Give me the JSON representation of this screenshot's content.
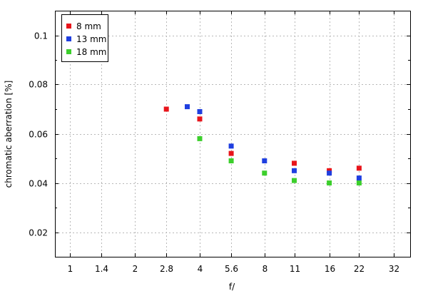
{
  "chart_data": {
    "type": "scatter",
    "xlabel": "f/",
    "ylabel": "chromatic aberration [%]",
    "x_scale": "log",
    "x_ticks": [
      1,
      1.4,
      2,
      2.8,
      4,
      5.6,
      8,
      11,
      16,
      22,
      32
    ],
    "x_tick_labels": [
      "1",
      "1.4",
      "2",
      "2.8",
      "4",
      "5.6",
      "8",
      "11",
      "16",
      "22",
      "32"
    ],
    "xlim": [
      0.85,
      38
    ],
    "y_ticks": [
      0.02,
      0.04,
      0.06,
      0.08,
      0.1
    ],
    "y_tick_labels": [
      "0.02",
      "0.04",
      "0.06",
      "0.08",
      "0.1"
    ],
    "ylim": [
      0.01,
      0.11
    ],
    "grid": true,
    "legend_position": "top-left",
    "series": [
      {
        "name": "8 mm",
        "color": "#e8141b",
        "points": [
          [
            2.8,
            0.07
          ],
          [
            4.0,
            0.066
          ],
          [
            5.6,
            0.052
          ],
          [
            11,
            0.048
          ],
          [
            16,
            0.045
          ],
          [
            22,
            0.046
          ]
        ]
      },
      {
        "name": "13 mm",
        "color": "#1f3fe0",
        "points": [
          [
            3.5,
            0.071
          ],
          [
            4.0,
            0.069
          ],
          [
            5.6,
            0.055
          ],
          [
            8,
            0.049
          ],
          [
            11,
            0.045
          ],
          [
            16,
            0.044
          ],
          [
            22,
            0.042
          ]
        ]
      },
      {
        "name": "18 mm",
        "color": "#3ccf2c",
        "points": [
          [
            4.0,
            0.058
          ],
          [
            5.6,
            0.049
          ],
          [
            8,
            0.044
          ],
          [
            11,
            0.041
          ],
          [
            16,
            0.04
          ],
          [
            22,
            0.04
          ]
        ]
      }
    ]
  }
}
